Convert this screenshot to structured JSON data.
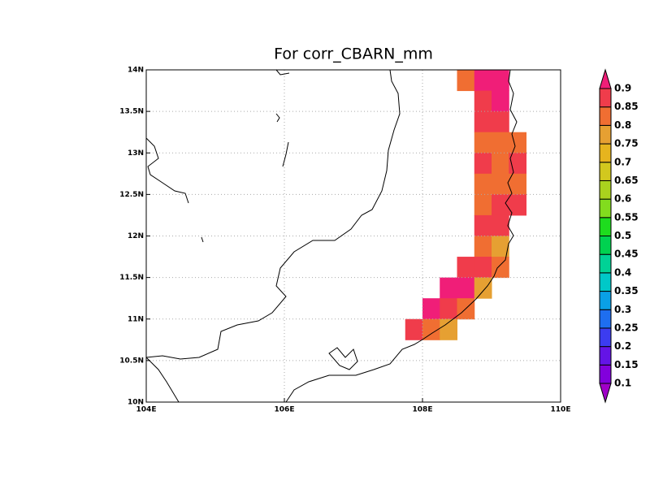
{
  "title": "For corr_CBARN_mm",
  "xlim": [
    104,
    110
  ],
  "ylim": [
    10,
    14
  ],
  "xticks": [
    {
      "value": 104,
      "label": "104E"
    },
    {
      "value": 106,
      "label": "106E"
    },
    {
      "value": 108,
      "label": "108E"
    },
    {
      "value": 110,
      "label": "110E"
    }
  ],
  "yticks": [
    {
      "value": 10,
      "label": "10N"
    },
    {
      "value": 10.5,
      "label": "10.5N"
    },
    {
      "value": 11,
      "label": "11N"
    },
    {
      "value": 11.5,
      "label": "11.5N"
    },
    {
      "value": 12,
      "label": "12N"
    },
    {
      "value": 12.5,
      "label": "12.5N"
    },
    {
      "value": 13,
      "label": "13N"
    },
    {
      "value": 13.5,
      "label": "13.5N"
    },
    {
      "value": 14,
      "label": "14N"
    }
  ],
  "grid": true,
  "cell_size": 0.25,
  "cells": [
    {
      "lon": 108.5,
      "lat": 13.75,
      "value": 0.82
    },
    {
      "lon": 108.75,
      "lat": 13.75,
      "value": 0.92
    },
    {
      "lon": 109.0,
      "lat": 13.75,
      "value": 0.92
    },
    {
      "lon": 108.75,
      "lat": 13.5,
      "value": 0.87
    },
    {
      "lon": 109.0,
      "lat": 13.5,
      "value": 0.92
    },
    {
      "lon": 108.75,
      "lat": 13.25,
      "value": 0.87
    },
    {
      "lon": 109.0,
      "lat": 13.25,
      "value": 0.87
    },
    {
      "lon": 108.75,
      "lat": 13.0,
      "value": 0.82
    },
    {
      "lon": 109.0,
      "lat": 13.0,
      "value": 0.82
    },
    {
      "lon": 109.25,
      "lat": 13.0,
      "value": 0.82
    },
    {
      "lon": 108.75,
      "lat": 12.75,
      "value": 0.87
    },
    {
      "lon": 109.0,
      "lat": 12.75,
      "value": 0.82
    },
    {
      "lon": 109.25,
      "lat": 12.75,
      "value": 0.87
    },
    {
      "lon": 108.75,
      "lat": 12.5,
      "value": 0.82
    },
    {
      "lon": 109.0,
      "lat": 12.5,
      "value": 0.82
    },
    {
      "lon": 109.25,
      "lat": 12.5,
      "value": 0.82
    },
    {
      "lon": 108.75,
      "lat": 12.25,
      "value": 0.82
    },
    {
      "lon": 109.0,
      "lat": 12.25,
      "value": 0.87
    },
    {
      "lon": 109.25,
      "lat": 12.25,
      "value": 0.87
    },
    {
      "lon": 108.75,
      "lat": 12.0,
      "value": 0.87
    },
    {
      "lon": 109.0,
      "lat": 12.0,
      "value": 0.87
    },
    {
      "lon": 108.75,
      "lat": 11.75,
      "value": 0.82
    },
    {
      "lon": 109.0,
      "lat": 11.75,
      "value": 0.77
    },
    {
      "lon": 108.5,
      "lat": 11.5,
      "value": 0.87
    },
    {
      "lon": 108.75,
      "lat": 11.5,
      "value": 0.87
    },
    {
      "lon": 109.0,
      "lat": 11.5,
      "value": 0.82
    },
    {
      "lon": 108.25,
      "lat": 11.25,
      "value": 0.92
    },
    {
      "lon": 108.5,
      "lat": 11.25,
      "value": 0.92
    },
    {
      "lon": 108.75,
      "lat": 11.25,
      "value": 0.77
    },
    {
      "lon": 108.0,
      "lat": 11.0,
      "value": 0.92
    },
    {
      "lon": 108.25,
      "lat": 11.0,
      "value": 0.87
    },
    {
      "lon": 108.5,
      "lat": 11.0,
      "value": 0.82
    },
    {
      "lon": 107.75,
      "lat": 10.75,
      "value": 0.87
    },
    {
      "lon": 108.0,
      "lat": 10.75,
      "value": 0.82
    },
    {
      "lon": 108.25,
      "lat": 10.75,
      "value": 0.77
    }
  ],
  "colorbar": {
    "levels": [
      0.1,
      0.15,
      0.2,
      0.25,
      0.3,
      0.35,
      0.4,
      0.45,
      0.5,
      0.55,
      0.6,
      0.65,
      0.7,
      0.75,
      0.8,
      0.85,
      0.9
    ],
    "colors": [
      "#a000c8",
      "#8200dc",
      "#6414e6",
      "#3c3cf0",
      "#1e6ef0",
      "#0aa0e6",
      "#00c8c8",
      "#00d296",
      "#00d250",
      "#1edc1e",
      "#82dc1e",
      "#aad21e",
      "#d2c81e",
      "#e6b41e",
      "#e6a032",
      "#f06e32",
      "#f03c4b",
      "#f01e78"
    ]
  }
}
